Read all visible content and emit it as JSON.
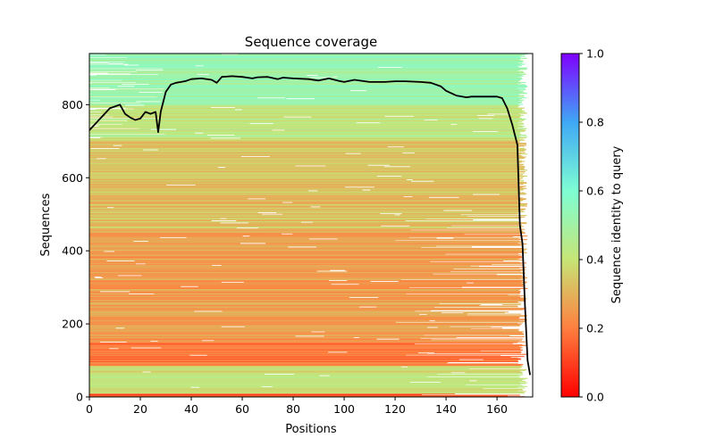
{
  "chart_data": {
    "type": "heatmap",
    "title": "Sequence coverage",
    "xlabel": "Positions",
    "ylabel": "Sequences",
    "xlim": [
      0,
      174
    ],
    "ylim": [
      0,
      940
    ],
    "x_ticks": [
      0,
      20,
      40,
      60,
      80,
      100,
      120,
      140,
      160
    ],
    "y_ticks": [
      0,
      200,
      400,
      600,
      800
    ],
    "grid": false,
    "colorbar": {
      "label": "Sequence identity to query",
      "colormap": "rainbow_r",
      "range": [
        0,
        1
      ],
      "ticks": [
        "0.0",
        "0.2",
        "0.4",
        "0.6",
        "0.8",
        "1.0"
      ],
      "colors": [
        "#ff0000",
        "#ff7f3f",
        "#c6e576",
        "#7efed4",
        "#3fa8f5",
        "#7f00ff"
      ]
    },
    "identity_bands": [
      {
        "rows": [
          0,
          10
        ],
        "identity": 0.12
      },
      {
        "rows": [
          10,
          85
        ],
        "identity": 0.4
      },
      {
        "rows": [
          85,
          150
        ],
        "identity": 0.18
      },
      {
        "rows": [
          150,
          460
        ],
        "identity": 0.26
      },
      {
        "rows": [
          460,
          700
        ],
        "identity": 0.33
      },
      {
        "rows": [
          700,
          800
        ],
        "identity": 0.42
      },
      {
        "rows": [
          800,
          940
        ],
        "identity": 0.52
      }
    ],
    "coverage_line": {
      "color": "#000000",
      "x": [
        0,
        2,
        4,
        6,
        8,
        10,
        12,
        14,
        16,
        18,
        20,
        22,
        24,
        26,
        27,
        28,
        30,
        32,
        34,
        36,
        38,
        40,
        44,
        48,
        50,
        52,
        56,
        60,
        64,
        66,
        70,
        74,
        76,
        80,
        86,
        90,
        94,
        98,
        100,
        104,
        110,
        116,
        120,
        124,
        130,
        134,
        138,
        140,
        144,
        148,
        150,
        154,
        160,
        162,
        164,
        166,
        168,
        169,
        170,
        171,
        172,
        173
      ],
      "y": [
        730,
        745,
        760,
        775,
        790,
        795,
        800,
        775,
        765,
        758,
        762,
        780,
        775,
        780,
        725,
        780,
        835,
        855,
        860,
        862,
        865,
        870,
        872,
        868,
        860,
        876,
        878,
        876,
        872,
        875,
        876,
        870,
        874,
        872,
        870,
        866,
        872,
        865,
        862,
        868,
        862,
        862,
        864,
        864,
        862,
        860,
        850,
        838,
        825,
        820,
        822,
        822,
        822,
        818,
        790,
        745,
        690,
        470,
        420,
        250,
        100,
        60
      ]
    }
  }
}
